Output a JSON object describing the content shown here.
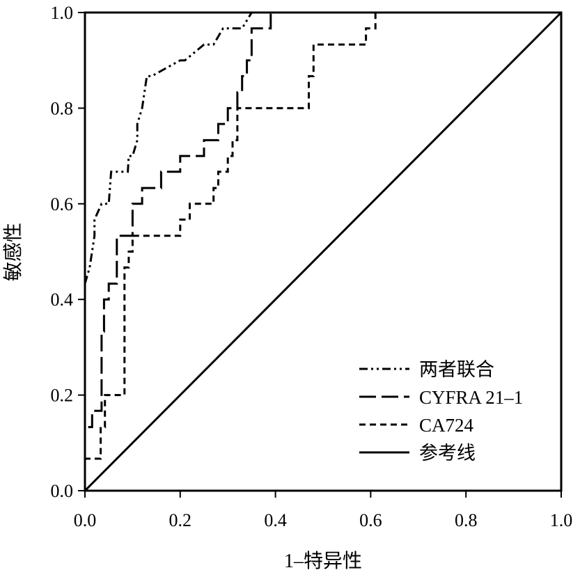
{
  "chart_data": {
    "type": "line",
    "title": "",
    "xlabel": "1–特异性",
    "ylabel": "敏感性",
    "xlim": [
      0,
      1
    ],
    "ylim": [
      0,
      1
    ],
    "xticks": [
      "0.0",
      "0.2",
      "0.4",
      "0.6",
      "0.8",
      "1.0"
    ],
    "yticks": [
      "0.0",
      "0.2",
      "0.4",
      "0.6",
      "0.8",
      "1.0"
    ],
    "grid": false,
    "legend_position": "bottom-right",
    "series": [
      {
        "name": "两者联合",
        "style": "dash-dot-dot",
        "x": [
          0,
          0,
          0.01,
          0.02,
          0.02,
          0.035,
          0.05,
          0.055,
          0.09,
          0.092,
          0.1,
          0.11,
          0.11,
          0.12,
          0.13,
          0.14,
          0.2,
          0.21,
          0.25,
          0.27,
          0.29,
          0.33,
          0.35
        ],
        "y": [
          0,
          0.433,
          0.467,
          0.533,
          0.567,
          0.6,
          0.6,
          0.667,
          0.667,
          0.7,
          0.7,
          0.733,
          0.767,
          0.8,
          0.867,
          0.867,
          0.9,
          0.9,
          0.933,
          0.933,
          0.967,
          0.967,
          1.0
        ]
      },
      {
        "name": "CYFRA 21–1",
        "style": "long-dash",
        "x": [
          0,
          0,
          0.015,
          0.015,
          0.035,
          0.035,
          0.04,
          0.04,
          0.05,
          0.05,
          0.067,
          0.067,
          0.1,
          0.1,
          0.12,
          0.12,
          0.16,
          0.16,
          0.2,
          0.2,
          0.25,
          0.25,
          0.28,
          0.28,
          0.3,
          0.3,
          0.32,
          0.32,
          0.33,
          0.33,
          0.34,
          0.34,
          0.35,
          0.35,
          0.39,
          0.39
        ],
        "y": [
          0,
          0.133,
          0.133,
          0.167,
          0.167,
          0.333,
          0.333,
          0.4,
          0.4,
          0.433,
          0.433,
          0.533,
          0.533,
          0.6,
          0.6,
          0.633,
          0.633,
          0.667,
          0.667,
          0.7,
          0.7,
          0.733,
          0.733,
          0.767,
          0.767,
          0.8,
          0.8,
          0.833,
          0.833,
          0.867,
          0.867,
          0.9,
          0.9,
          0.967,
          0.967,
          1.0
        ]
      },
      {
        "name": "CA724",
        "style": "short-dash",
        "x": [
          0,
          0,
          0.033,
          0.033,
          0.042,
          0.042,
          0.083,
          0.083,
          0.092,
          0.092,
          0.1,
          0.1,
          0.2,
          0.2,
          0.22,
          0.22,
          0.27,
          0.27,
          0.28,
          0.28,
          0.3,
          0.3,
          0.31,
          0.31,
          0.32,
          0.32,
          0.33,
          0.33,
          0.47,
          0.47,
          0.48,
          0.48,
          0.59,
          0.59,
          0.61,
          0.61
        ],
        "y": [
          0,
          0.067,
          0.067,
          0.133,
          0.133,
          0.2,
          0.2,
          0.467,
          0.467,
          0.5,
          0.5,
          0.533,
          0.533,
          0.567,
          0.567,
          0.6,
          0.6,
          0.633,
          0.633,
          0.667,
          0.667,
          0.7,
          0.7,
          0.733,
          0.733,
          0.8,
          0.8,
          0.8,
          0.8,
          0.867,
          0.867,
          0.933,
          0.933,
          0.967,
          0.967,
          1.0
        ]
      },
      {
        "name": "参考线",
        "style": "solid",
        "x": [
          0,
          1
        ],
        "y": [
          0,
          1
        ]
      }
    ]
  }
}
